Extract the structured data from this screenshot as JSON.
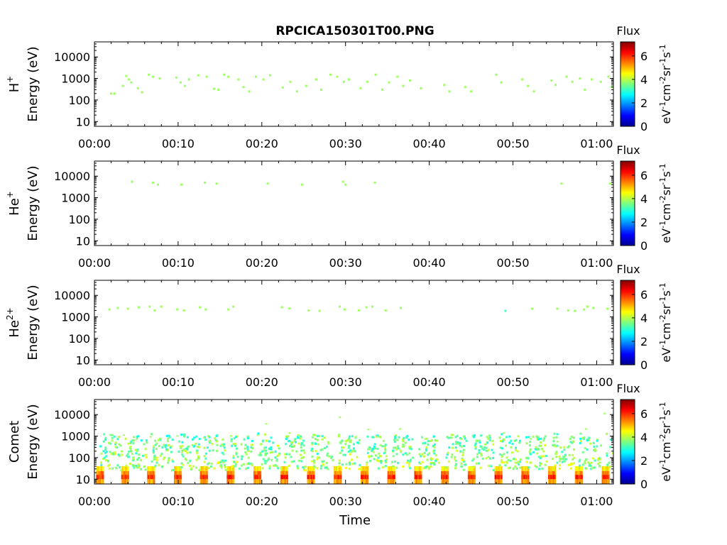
{
  "figure": {
    "title": "RPCICA150301T00.PNG",
    "xlabel": "Time",
    "colorbar": {
      "title": "Flux",
      "unit": "eV",
      "unit_parts": [
        "eV",
        "-1",
        "cm",
        "-2",
        "sr",
        "-1",
        "s",
        "-1"
      ],
      "ticks": [
        "0",
        "2",
        "4",
        "6"
      ],
      "range": [
        0,
        7.2
      ]
    },
    "xticks": [
      "00:00",
      "00:10",
      "00:20",
      "00:30",
      "00:40",
      "00:50",
      "01:00"
    ],
    "yticks": [
      "10",
      "100",
      "1000",
      "10000"
    ]
  },
  "chart_data": [
    {
      "type": "heatmap",
      "species": "H",
      "species_sup": "+",
      "ylabel": "Energy (eV)",
      "xlabel": "",
      "x_unit": "minutes",
      "xlim": [
        0,
        62
      ],
      "ylim": [
        6,
        50000
      ],
      "yscale": "log",
      "grid": false,
      "points": [
        [
          2,
          200,
          3.8
        ],
        [
          2.4,
          200,
          3.8
        ],
        [
          3.4,
          450,
          3.8
        ],
        [
          3.8,
          1300,
          3.8
        ],
        [
          4.1,
          900,
          3.8
        ],
        [
          4.4,
          650,
          3.8
        ],
        [
          5.2,
          350,
          3.8
        ],
        [
          5.7,
          230,
          3.8
        ],
        [
          6.5,
          1500,
          3.8
        ],
        [
          7,
          1200,
          3.8
        ],
        [
          7.8,
          1000,
          3.8
        ],
        [
          9.8,
          1100,
          3.8
        ],
        [
          10.3,
          650,
          3.8
        ],
        [
          10.8,
          450,
          3.8
        ],
        [
          11.3,
          900,
          3.8
        ],
        [
          12.4,
          1400,
          3.8
        ],
        [
          13.4,
          1200,
          3.8
        ],
        [
          14.3,
          330,
          3.8
        ],
        [
          14.8,
          300,
          3.8
        ],
        [
          15.5,
          1500,
          3.8
        ],
        [
          16,
          1200,
          3.8
        ],
        [
          17.2,
          900,
          3.8
        ],
        [
          17.8,
          400,
          3.8
        ],
        [
          18.5,
          250,
          3.8
        ],
        [
          19.3,
          1200,
          3.8
        ],
        [
          20.2,
          900,
          3.8
        ],
        [
          21,
          1400,
          3.8
        ],
        [
          22.5,
          380,
          3.8
        ],
        [
          23.4,
          700,
          3.8
        ],
        [
          24.2,
          250,
          3.8
        ],
        [
          25.3,
          450,
          3.8
        ],
        [
          26.5,
          900,
          3.8
        ],
        [
          27.1,
          300,
          3.8
        ],
        [
          28.2,
          1500,
          3.8
        ],
        [
          29,
          1200,
          3.8
        ],
        [
          29.8,
          700,
          3.8
        ],
        [
          30.4,
          900,
          3.8
        ],
        [
          31.8,
          350,
          3.8
        ],
        [
          32.6,
          700,
          3.8
        ],
        [
          33.6,
          1500,
          3.8
        ],
        [
          34.4,
          300,
          3.8
        ],
        [
          35.2,
          650,
          3.8
        ],
        [
          36.2,
          1200,
          3.8
        ],
        [
          36.9,
          450,
          3.8
        ],
        [
          37.7,
          800,
          3.8
        ],
        [
          39,
          350,
          3.8
        ],
        [
          41.8,
          500,
          3.8
        ],
        [
          42.4,
          250,
          3.8
        ],
        [
          44.3,
          400,
          3.8
        ],
        [
          45,
          250,
          3.8
        ],
        [
          48,
          1500,
          3.8
        ],
        [
          48.6,
          650,
          3.8
        ],
        [
          51.1,
          900,
          3.8
        ],
        [
          51.8,
          450,
          3.8
        ],
        [
          52.5,
          250,
          3.8
        ],
        [
          54.6,
          800,
          3.8
        ],
        [
          55.1,
          500,
          3.8
        ],
        [
          56.4,
          1200,
          3.8
        ],
        [
          57.1,
          700,
          3.8
        ],
        [
          58,
          1000,
          3.8
        ],
        [
          58.6,
          300,
          3.8
        ],
        [
          59.4,
          900,
          3.8
        ],
        [
          60.5,
          700,
          3.8
        ],
        [
          61.4,
          1200,
          3.8
        ],
        [
          61.8,
          400,
          3.8
        ]
      ]
    },
    {
      "type": "heatmap",
      "species": "He",
      "species_sup": "+",
      "ylabel": "Energy (eV)",
      "xlabel": "",
      "x_unit": "minutes",
      "xlim": [
        0,
        62
      ],
      "ylim": [
        6,
        50000
      ],
      "yscale": "log",
      "grid": false,
      "points": [
        [
          4.5,
          5500,
          3.8
        ],
        [
          7,
          5000,
          3.8
        ],
        [
          7.6,
          4000,
          3.8
        ],
        [
          10.4,
          4000,
          3.8
        ],
        [
          13.2,
          5000,
          3.8
        ],
        [
          14.6,
          4500,
          3.8
        ],
        [
          20.7,
          4500,
          3.8
        ],
        [
          24.8,
          4000,
          3.8
        ],
        [
          29.7,
          5500,
          3.8
        ],
        [
          30,
          4000,
          3.8
        ],
        [
          33.5,
          5000,
          3.8
        ],
        [
          55.8,
          4500,
          3.8
        ],
        [
          61.6,
          4500,
          3.8
        ]
      ]
    },
    {
      "type": "heatmap",
      "species": "He",
      "species_sup": "2+",
      "ylabel": "Energy (eV)",
      "xlabel": "",
      "x_unit": "minutes",
      "xlim": [
        0,
        62
      ],
      "ylim": [
        6,
        50000
      ],
      "yscale": "log",
      "grid": false,
      "points": [
        [
          1.8,
          2200,
          3.8
        ],
        [
          2.8,
          2600,
          3.8
        ],
        [
          4,
          2400,
          3.8
        ],
        [
          5.3,
          2800,
          3.8
        ],
        [
          6.6,
          3000,
          3.8
        ],
        [
          7.2,
          2000,
          3.8
        ],
        [
          8,
          3000,
          3.8
        ],
        [
          9.9,
          2200,
          3.8
        ],
        [
          10.7,
          2000,
          3.8
        ],
        [
          12.6,
          2800,
          3.8
        ],
        [
          13.3,
          2200,
          3.8
        ],
        [
          16,
          2200,
          3.8
        ],
        [
          16.6,
          3000,
          3.8
        ],
        [
          22.4,
          2800,
          3.8
        ],
        [
          23.3,
          2500,
          3.8
        ],
        [
          25.6,
          2000,
          3.8
        ],
        [
          26.9,
          1900,
          3.8
        ],
        [
          29.3,
          3000,
          3.8
        ],
        [
          29.9,
          2200,
          3.8
        ],
        [
          31.6,
          2000,
          3.8
        ],
        [
          32.5,
          2800,
          3.8
        ],
        [
          33.2,
          3000,
          3.8
        ],
        [
          34.8,
          2000,
          3.8
        ],
        [
          36.6,
          2600,
          3.8
        ],
        [
          49.1,
          1900,
          3.2
        ],
        [
          52.3,
          2400,
          3.8
        ],
        [
          55.3,
          2400,
          3.8
        ],
        [
          56.6,
          2000,
          3.8
        ],
        [
          57.4,
          1900,
          3.8
        ],
        [
          58.5,
          2200,
          3.8
        ],
        [
          58.9,
          3000,
          3.8
        ],
        [
          59.6,
          2600,
          3.8
        ],
        [
          61.3,
          2400,
          3.8
        ]
      ]
    },
    {
      "type": "heatmap",
      "species": "Comet",
      "species_sup": "",
      "ylabel": "Energy (eV)",
      "xlabel": "Time",
      "x_unit": "minutes",
      "xlim": [
        0,
        62
      ],
      "ylim": [
        6,
        50000
      ],
      "yscale": "log",
      "grid": false,
      "pulse_times": [
        0.2,
        3.2,
        6.3,
        9.5,
        12.6,
        15.8,
        19,
        22.2,
        25.4,
        28.6,
        31.8,
        35,
        38.2,
        41.4,
        44.6,
        47.8,
        51,
        54.2,
        57.4,
        60.6
      ],
      "pulse_duration": 0.9,
      "ion_features": [
        [
          3.4,
          1200
        ],
        [
          6.6,
          1000
        ],
        [
          9.8,
          1100
        ],
        [
          13,
          900
        ],
        [
          16.2,
          1100
        ],
        [
          19.4,
          1200
        ],
        [
          20.4,
          4000
        ],
        [
          23.2,
          1500
        ],
        [
          29.2,
          8000
        ],
        [
          32.6,
          2200
        ],
        [
          36.4,
          2300
        ],
        [
          39.4,
          800
        ],
        [
          42.6,
          900
        ],
        [
          45.6,
          700
        ],
        [
          48.8,
          1500
        ],
        [
          52,
          800
        ],
        [
          55.2,
          600
        ],
        [
          58.6,
          2300
        ],
        [
          60.8,
          12000
        ]
      ]
    }
  ]
}
